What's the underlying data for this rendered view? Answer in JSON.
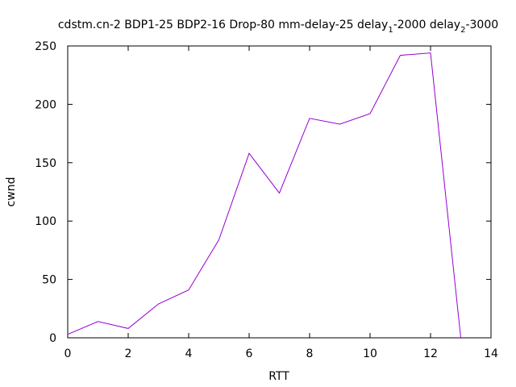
{
  "chart_data": {
    "type": "line",
    "title_main": "cdstm.cn-2 BDP1-25 BDP2-16 Drop-80 mm-delay-25 delay",
    "title_sub1": "1",
    "title_mid": "-2000 delay",
    "title_sub2": "2",
    "title_end": "-3000",
    "xlabel": "RTT",
    "ylabel": "cwnd",
    "xlim": [
      0,
      14
    ],
    "ylim": [
      0,
      250
    ],
    "xticks": [
      0,
      2,
      4,
      6,
      8,
      10,
      12,
      14
    ],
    "yticks": [
      0,
      50,
      100,
      150,
      200,
      250
    ],
    "grid": false,
    "series": [
      {
        "color": "#9400d3",
        "x": [
          0,
          1,
          2,
          3,
          4,
          5,
          6,
          7,
          8,
          9,
          10,
          11,
          12,
          13
        ],
        "y": [
          3,
          14,
          8,
          29,
          41,
          84,
          158,
          124,
          188,
          183,
          192,
          242,
          244,
          0
        ]
      }
    ]
  }
}
